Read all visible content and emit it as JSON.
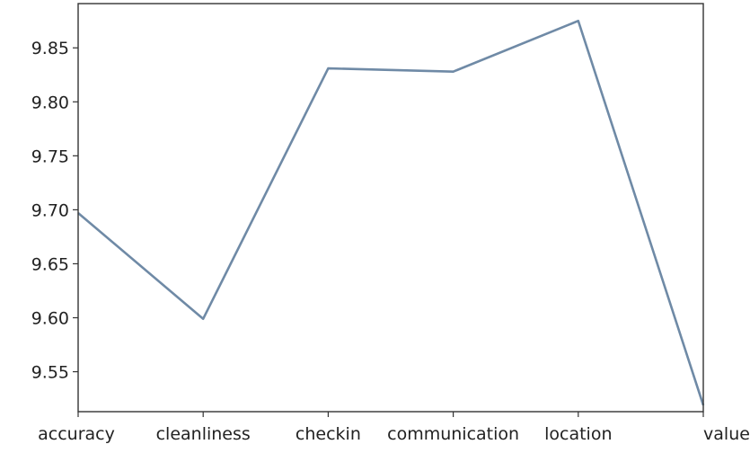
{
  "chart_data": {
    "type": "line",
    "title": "",
    "xlabel": "",
    "ylabel": "",
    "categories": [
      "accuracy",
      "cleanliness",
      "checkin",
      "communication",
      "location",
      "value"
    ],
    "series": [
      {
        "values": [
          9.697,
          9.599,
          9.831,
          9.828,
          9.875,
          9.519
        ]
      }
    ],
    "ylim": [
      9.513,
      9.891
    ],
    "yticks": [
      9.55,
      9.6,
      9.65,
      9.7,
      9.75,
      9.8,
      9.85
    ],
    "ytick_labels": [
      "9.55",
      "9.60",
      "9.65",
      "9.70",
      "9.75",
      "9.80",
      "9.85"
    ],
    "grid": false,
    "line_color": "#6f8aa6"
  }
}
